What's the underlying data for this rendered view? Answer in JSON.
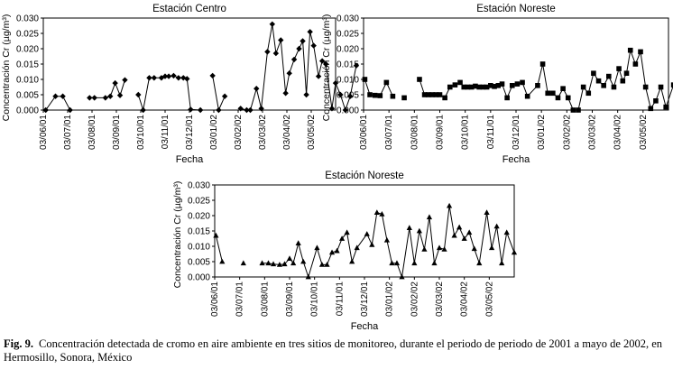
{
  "chart_data": [
    {
      "type": "line",
      "marker": "diamond",
      "title": "Estación Centro",
      "xlabel": "Fecha",
      "ylabel": "Concentración Cr (µg/m³)",
      "ylim": [
        0,
        0.03
      ],
      "yticks": [
        "0.000",
        "0.005",
        "0.010",
        "0.015",
        "0.020",
        "0.025",
        "0.030"
      ],
      "xticks": [
        "03/06/01",
        "03/07/01",
        "03/08/01",
        "03/09/01",
        "03/10/01",
        "03/11/01",
        "03/12/01",
        "03/01/02",
        "03/02/02",
        "03/03/02",
        "03/04/02",
        "03/05/02"
      ],
      "series": [
        {
          "name": "Cr",
          "points": [
            [
              0.1,
              0.0
            ],
            [
              0.5,
              0.0045
            ],
            [
              0.8,
              0.0045
            ],
            [
              1.1,
              0.0
            ],
            [
              1.9,
              0.004
            ],
            [
              2.1,
              0.004
            ],
            [
              2.55,
              0.004
            ],
            [
              2.75,
              0.0045
            ],
            [
              2.95,
              0.0088
            ],
            [
              3.15,
              0.0048
            ],
            [
              3.35,
              0.0098
            ],
            [
              3.9,
              0.005
            ],
            [
              4.1,
              0.0
            ],
            [
              4.35,
              0.0105
            ],
            [
              4.55,
              0.0105
            ],
            [
              4.85,
              0.0105
            ],
            [
              5.0,
              0.011
            ],
            [
              5.15,
              0.011
            ],
            [
              5.35,
              0.0112
            ],
            [
              5.55,
              0.0105
            ],
            [
              5.75,
              0.0105
            ],
            [
              5.9,
              0.0102
            ],
            [
              6.05,
              0.0002
            ],
            [
              6.45,
              0.0
            ],
            [
              6.95,
              0.0112
            ],
            [
              7.2,
              0.0
            ],
            [
              7.45,
              0.0045
            ],
            [
              8.1,
              0.0005
            ],
            [
              8.35,
              0.0
            ],
            [
              8.5,
              0.0
            ],
            [
              8.75,
              0.007
            ],
            [
              8.95,
              0.0005
            ],
            [
              9.2,
              0.019
            ],
            [
              9.4,
              0.028
            ],
            [
              9.55,
              0.0185
            ],
            [
              9.75,
              0.0228
            ],
            [
              9.95,
              0.0055
            ],
            [
              10.1,
              0.012
            ],
            [
              10.3,
              0.0165
            ],
            [
              10.5,
              0.02
            ],
            [
              10.65,
              0.0225
            ],
            [
              10.8,
              0.005
            ],
            [
              10.95,
              0.0255
            ],
            [
              11.1,
              0.021
            ],
            [
              11.3,
              0.011
            ],
            [
              11.45,
              0.016
            ],
            [
              11.6,
              0.015
            ],
            [
              11.85,
              0.0005
            ],
            [
              12.0,
              0.0088
            ],
            [
              12.2,
              0.005
            ],
            [
              12.4,
              0.0
            ],
            [
              12.6,
              0.0045
            ],
            [
              12.85,
              0.0145
            ]
          ]
        }
      ]
    },
    {
      "type": "line",
      "marker": "square",
      "title": "Estación Noreste",
      "xlabel": "Fecha",
      "ylabel": "Concentración Cr (µg/m³)",
      "ylim": [
        0,
        0.03
      ],
      "yticks": [
        "0.000",
        "0.005",
        "0.010",
        "0.015",
        "0.020",
        "0.025",
        "0.030"
      ],
      "xticks": [
        "03/06/01",
        "03/07/01",
        "03/08/01",
        "03/09/01",
        "03/10/01",
        "03/11/01",
        "03/12/01",
        "03/01/02",
        "03/02/02",
        "03/03/02",
        "03/04/02",
        "03/05/02"
      ],
      "series": [
        {
          "name": "Cr",
          "points": [
            [
              0.05,
              0.01
            ],
            [
              0.25,
              0.005
            ],
            [
              0.45,
              0.0048
            ],
            [
              0.65,
              0.0047
            ],
            [
              0.9,
              0.009
            ],
            [
              1.15,
              0.0045
            ],
            [
              1.6,
              0.004
            ],
            [
              2.2,
              0.01
            ],
            [
              2.4,
              0.005
            ],
            [
              2.55,
              0.005
            ],
            [
              2.7,
              0.005
            ],
            [
              2.85,
              0.005
            ],
            [
              3.0,
              0.005
            ],
            [
              3.2,
              0.004
            ],
            [
              3.4,
              0.0075
            ],
            [
              3.6,
              0.0082
            ],
            [
              3.8,
              0.009
            ],
            [
              3.95,
              0.0075
            ],
            [
              4.1,
              0.0075
            ],
            [
              4.25,
              0.0075
            ],
            [
              4.4,
              0.0078
            ],
            [
              4.55,
              0.0075
            ],
            [
              4.7,
              0.0075
            ],
            [
              4.85,
              0.0075
            ],
            [
              5.0,
              0.008
            ],
            [
              5.15,
              0.0077
            ],
            [
              5.3,
              0.008
            ],
            [
              5.45,
              0.0085
            ],
            [
              5.65,
              0.004
            ],
            [
              5.85,
              0.008
            ],
            [
              6.05,
              0.0085
            ],
            [
              6.25,
              0.009
            ],
            [
              6.45,
              0.0045
            ],
            [
              6.85,
              0.008
            ],
            [
              7.05,
              0.015
            ],
            [
              7.25,
              0.0055
            ],
            [
              7.45,
              0.0055
            ],
            [
              7.65,
              0.004
            ],
            [
              7.85,
              0.007
            ],
            [
              8.05,
              0.004
            ],
            [
              8.25,
              0.0
            ],
            [
              8.45,
              0.0
            ],
            [
              8.65,
              0.0075
            ],
            [
              8.85,
              0.0055
            ],
            [
              9.05,
              0.012
            ],
            [
              9.25,
              0.0095
            ],
            [
              9.45,
              0.008
            ],
            [
              9.65,
              0.011
            ],
            [
              9.85,
              0.0075
            ],
            [
              10.05,
              0.0135
            ],
            [
              10.2,
              0.0095
            ],
            [
              10.35,
              0.012
            ],
            [
              10.5,
              0.0195
            ],
            [
              10.7,
              0.015
            ],
            [
              10.9,
              0.019
            ],
            [
              11.1,
              0.0075
            ],
            [
              11.3,
              0.0005
            ],
            [
              11.5,
              0.003
            ],
            [
              11.7,
              0.0075
            ],
            [
              11.9,
              0.001
            ],
            [
              12.2,
              0.0082
            ],
            [
              12.45,
              0.003
            ],
            [
              12.7,
              0.0045
            ],
            [
              12.95,
              0.005
            ]
          ]
        }
      ]
    },
    {
      "type": "line",
      "marker": "triangle",
      "title": "Estación Noreste",
      "xlabel": "Fecha",
      "ylabel": "Concentración Cr (µg/m³)",
      "ylim": [
        0,
        0.03
      ],
      "yticks": [
        "0.000",
        "0.005",
        "0.010",
        "0.015",
        "0.020",
        "0.025",
        "0.030"
      ],
      "xticks": [
        "03/06/01",
        "03/07/01",
        "03/08/01",
        "03/09/01",
        "03/10/01",
        "03/11/01",
        "03/12/01",
        "03/01/02",
        "03/02/02",
        "03/03/02",
        "03/04/02",
        "03/05/02"
      ],
      "series": [
        {
          "name": "Cr",
          "points": [
            [
              0.05,
              0.0135
            ],
            [
              0.3,
              0.005
            ],
            [
              1.15,
              0.0045
            ],
            [
              1.9,
              0.0045
            ],
            [
              2.15,
              0.0045
            ],
            [
              2.35,
              0.0042
            ],
            [
              2.6,
              0.004
            ],
            [
              2.8,
              0.0042
            ],
            [
              3.0,
              0.006
            ],
            [
              3.15,
              0.0045
            ],
            [
              3.35,
              0.011
            ],
            [
              3.55,
              0.005
            ],
            [
              3.75,
              0.0
            ],
            [
              4.1,
              0.0095
            ],
            [
              4.3,
              0.004
            ],
            [
              4.5,
              0.004
            ],
            [
              4.7,
              0.008
            ],
            [
              4.9,
              0.0085
            ],
            [
              5.1,
              0.0125
            ],
            [
              5.3,
              0.0145
            ],
            [
              5.5,
              0.005
            ],
            [
              5.7,
              0.0095
            ],
            [
              6.1,
              0.014
            ],
            [
              6.3,
              0.0105
            ],
            [
              6.5,
              0.021
            ],
            [
              6.7,
              0.0205
            ],
            [
              6.9,
              0.012
            ],
            [
              7.1,
              0.0045
            ],
            [
              7.3,
              0.0045
            ],
            [
              7.5,
              0.0
            ],
            [
              7.8,
              0.016
            ],
            [
              8.0,
              0.0045
            ],
            [
              8.2,
              0.015
            ],
            [
              8.4,
              0.009
            ],
            [
              8.6,
              0.0195
            ],
            [
              8.8,
              0.0045
            ],
            [
              9.0,
              0.0095
            ],
            [
              9.2,
              0.009
            ],
            [
              9.4,
              0.0232
            ],
            [
              9.6,
              0.0135
            ],
            [
              9.8,
              0.0162
            ],
            [
              10.0,
              0.0125
            ],
            [
              10.2,
              0.0145
            ],
            [
              10.4,
              0.0092
            ],
            [
              10.6,
              0.0045
            ],
            [
              10.9,
              0.021
            ],
            [
              11.1,
              0.0095
            ],
            [
              11.3,
              0.0165
            ],
            [
              11.5,
              0.0045
            ],
            [
              11.7,
              0.0145
            ],
            [
              12.0,
              0.008
            ]
          ]
        }
      ]
    }
  ],
  "caption": {
    "label": "Fig. 9.",
    "text": "Concentración detectada de cromo en aire ambiente en tres sitios de monitoreo, durante el periodo de periodo de 2001 a mayo de 2002, en Hermosillo, Sonora, México"
  }
}
